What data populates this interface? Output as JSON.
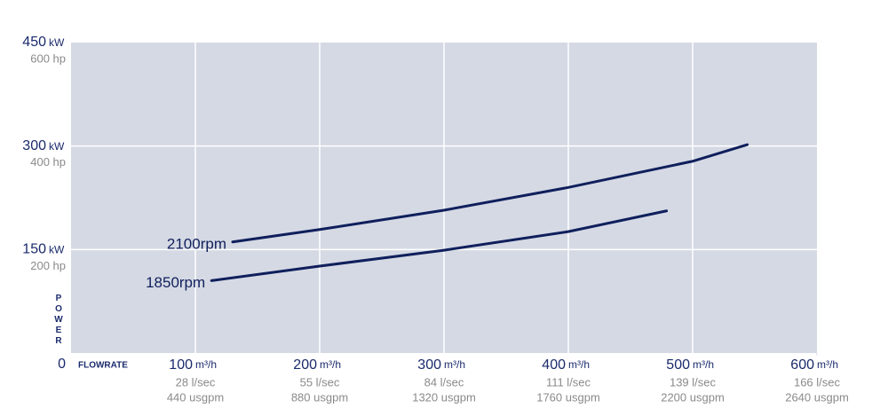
{
  "chart_data": {
    "type": "line",
    "y_axis_label": "POWER",
    "x_axis_label": "FLOWRATE",
    "y_unit": "kW",
    "x_unit": "m³/h",
    "xlim": [
      0,
      600
    ],
    "xticks": [
      100,
      200,
      300,
      400,
      500,
      600
    ],
    "x_secondary_labels": [
      "28 l/sec",
      "55 l/sec",
      "84 l/sec",
      "111 l/sec",
      "139 l/sec",
      "166 l/sec"
    ],
    "x_tertiary_labels": [
      "440 usgpm",
      "880 usgpm",
      "1320 usgpm",
      "1760 usgpm",
      "2200 usgpm",
      "2640 usgpm"
    ],
    "ylim": [
      0,
      450
    ],
    "yticks": [
      0,
      150,
      300,
      450
    ],
    "y_secondary_labels": [
      null,
      "200 hp",
      "400 hp",
      "600 hp"
    ],
    "grid": true,
    "plot_background": "#d5d9e4",
    "series": [
      {
        "name": "2100rpm",
        "color": "#0f1f5c",
        "x": [
          130,
          200,
          300,
          400,
          500,
          544
        ],
        "values": [
          161,
          179,
          207,
          240,
          278,
          302
        ]
      },
      {
        "name": "1850rpm",
        "color": "#0f1f5c",
        "x": [
          113,
          200,
          300,
          400,
          479
        ],
        "values": [
          105,
          126,
          149,
          176,
          206
        ]
      }
    ]
  }
}
